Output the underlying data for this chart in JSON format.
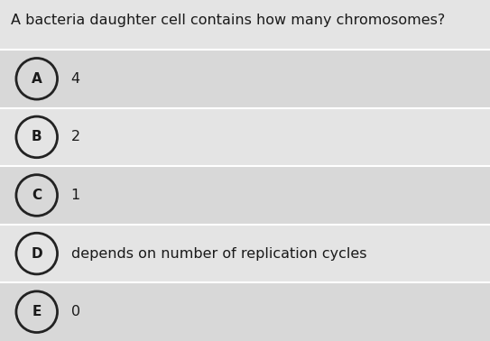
{
  "question": "A bacteria daughter cell contains how many chromosomes?",
  "options": [
    {
      "letter": "A",
      "text": "4"
    },
    {
      "letter": "B",
      "text": "2"
    },
    {
      "letter": "C",
      "text": "1"
    },
    {
      "letter": "D",
      "text": "depends on number of replication cycles"
    },
    {
      "letter": "E",
      "text": "0"
    }
  ],
  "bg_color": "#e4e4e4",
  "row_colors": [
    "#d8d8d8",
    "#e4e4e4",
    "#d8d8d8",
    "#e4e4e4",
    "#d8d8d8"
  ],
  "separator_color": "#ffffff",
  "question_color": "#1a1a1a",
  "option_text_color": "#1a1a1a",
  "circle_edge_color": "#222222",
  "question_fontsize": 11.5,
  "option_fontsize": 11.5,
  "letter_fontsize": 11,
  "figsize": [
    5.43,
    3.78
  ],
  "dpi": 100
}
